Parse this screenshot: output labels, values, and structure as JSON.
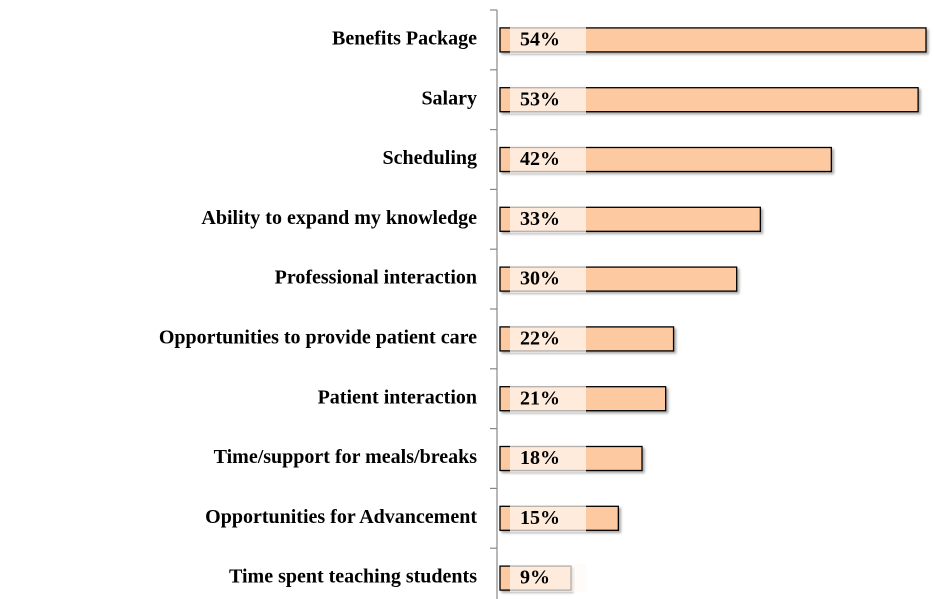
{
  "chart_data": {
    "type": "bar",
    "orientation": "horizontal",
    "categories": [
      "Benefits Package",
      "Salary",
      "Scheduling",
      "Ability to expand my knowledge",
      "Professional interaction",
      "Opportunities to provide patient care",
      "Patient interaction",
      "Time/support for meals/breaks",
      "Opportunities for Advancement",
      "Time spent teaching students"
    ],
    "values": [
      54,
      53,
      42,
      33,
      30,
      22,
      21,
      18,
      15,
      9
    ],
    "value_labels": [
      "54%",
      "53%",
      "42%",
      "33%",
      "30%",
      "22%",
      "21%",
      "18%",
      "15%",
      "9%"
    ],
    "color": "#fcc9a0"
  }
}
